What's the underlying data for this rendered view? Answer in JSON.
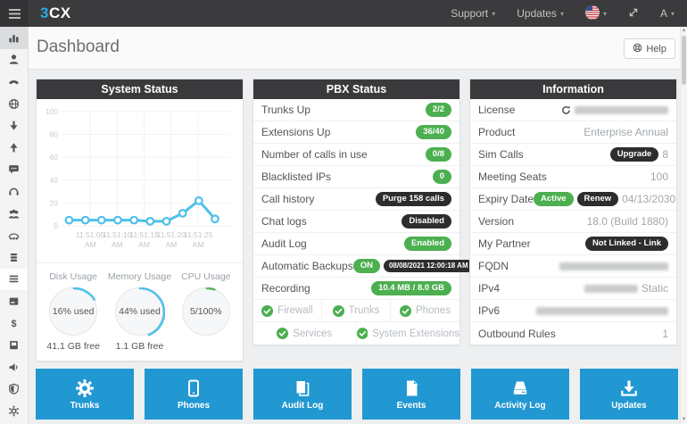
{
  "colors": {
    "topbar_bg": "#3b3b3d",
    "accent_blue": "#29abe2",
    "tile_blue": "#2198d1",
    "badge_green": "#4caf50",
    "badge_dark": "#2d2d2d",
    "panel_header_bg": "#3a3a3c",
    "chart_line": "#4fc1e9",
    "gauge_green": "#5cb85c",
    "content_bg": "#edeff0"
  },
  "topbar": {
    "logo": {
      "blue_part": "3",
      "white_part": "CX"
    },
    "menu": [
      {
        "label": "Support"
      },
      {
        "label": "Updates"
      }
    ],
    "language_icon": "us-flag-icon",
    "fullscreen_icon": "expand-icon",
    "user_menu": {
      "label": "A"
    }
  },
  "sidebar": {
    "icons": [
      "bar-chart",
      "user",
      "desk-phone",
      "globe",
      "arrow-down",
      "arrow-up",
      "chat",
      "headset",
      "users",
      "conference",
      "stack",
      "list",
      "card",
      "dollar",
      "book",
      "speaker",
      "shield",
      "gear"
    ],
    "selected_index": 0,
    "highlighted_index": 11
  },
  "page": {
    "title": "Dashboard",
    "help_button": {
      "label": "Help",
      "icon": "life-ring-icon"
    }
  },
  "panels": {
    "system_status": {
      "title": "System Status",
      "chart_data": {
        "type": "line",
        "title": "",
        "x_labels": [
          "11:51:05 AM",
          "11:51:10 AM",
          "11:51:15 AM",
          "11:51:20 AM",
          "11:51:25 AM"
        ],
        "values": [
          5,
          5,
          5,
          5,
          5,
          4,
          4,
          11,
          22,
          6
        ],
        "xlabel": "",
        "ylabel": "",
        "ylim": [
          0,
          100
        ],
        "yticks": [
          0,
          20,
          40,
          60,
          80,
          100
        ],
        "grid": true,
        "legend": "none",
        "line_color": "#4fc1e9"
      },
      "gauges": [
        {
          "label": "Disk Usage",
          "center": "16% used",
          "sub": "41.1 GB free",
          "percent": 16,
          "color": "#4fc1e9"
        },
        {
          "label": "Memory Usage",
          "center": "44% used",
          "sub": "1.1 GB free",
          "percent": 44,
          "color": "#4fc1e9"
        },
        {
          "label": "CPU Usage",
          "center": "5/100%",
          "sub": "",
          "percent": 5,
          "color": "#5cb85c"
        }
      ]
    },
    "pbx_status": {
      "title": "PBX Status",
      "rows": [
        {
          "label": "Trunks Up",
          "badges": [
            {
              "text": "2/2",
              "style": "green",
              "interactable": false
            }
          ]
        },
        {
          "label": "Extensions Up",
          "badges": [
            {
              "text": "36/40",
              "style": "green",
              "interactable": false
            }
          ]
        },
        {
          "label": "Number of calls in use",
          "badges": [
            {
              "text": "0/8",
              "style": "green",
              "interactable": false
            }
          ]
        },
        {
          "label": "Blacklisted IPs",
          "badges": [
            {
              "text": "0",
              "style": "green",
              "interactable": false
            }
          ]
        },
        {
          "label": "Call history",
          "badges": [
            {
              "text": "Purge 158 calls",
              "style": "dark",
              "interactable": true
            }
          ]
        },
        {
          "label": "Chat logs",
          "badges": [
            {
              "text": "Disabled",
              "style": "dark",
              "interactable": false
            }
          ]
        },
        {
          "label": "Audit Log",
          "badges": [
            {
              "text": "Enabled",
              "style": "green",
              "interactable": false
            }
          ]
        },
        {
          "label": "Automatic Backups",
          "badges": [
            {
              "text": "ON",
              "style": "green",
              "interactable": true
            },
            {
              "text": "08/08/2021 12:00:18 AM",
              "style": "dark",
              "interactable": true
            }
          ]
        },
        {
          "label": "Recording",
          "badges": [
            {
              "text": "10.4 MB / 8.0 GB",
              "style": "green",
              "interactable": false
            }
          ]
        }
      ],
      "checks": [
        "Firewall",
        "Trunks",
        "Phones",
        "Services",
        "System Extensions"
      ]
    },
    "information": {
      "title": "Information",
      "rows": [
        {
          "label": "License",
          "redacted": true,
          "refresh_icon": true
        },
        {
          "label": "Product",
          "value": "Enterprise Annual"
        },
        {
          "label": "Sim Calls",
          "badges": [
            {
              "text": "Upgrade",
              "style": "dark",
              "interactable": true
            }
          ],
          "value": "8"
        },
        {
          "label": "Meeting Seats",
          "value": "100"
        },
        {
          "label": "Expiry Date",
          "badges": [
            {
              "text": "Active",
              "style": "green",
              "interactable": false
            },
            {
              "text": "Renew",
              "style": "dark",
              "interactable": true
            }
          ],
          "value": "04/13/2030"
        },
        {
          "label": "Version",
          "value": "18.0 (Build 1880)"
        },
        {
          "label": "My Partner",
          "badges": [
            {
              "text": "Not Linked - Link",
              "style": "dark",
              "interactable": true
            }
          ]
        },
        {
          "label": "FQDN",
          "redacted": true
        },
        {
          "label": "IPv4",
          "redacted": true,
          "value": "Static"
        },
        {
          "label": "IPv6",
          "redacted": true
        },
        {
          "label": "Outbound Rules",
          "value": "1"
        }
      ]
    }
  },
  "tiles": [
    {
      "label": "Trunks",
      "icon": "gear"
    },
    {
      "label": "Phones",
      "icon": "smartphone"
    },
    {
      "label": "Audit Log",
      "icon": "audit"
    },
    {
      "label": "Events",
      "icon": "file"
    },
    {
      "label": "Activity Log",
      "icon": "drive"
    },
    {
      "label": "Updates",
      "icon": "download"
    }
  ]
}
